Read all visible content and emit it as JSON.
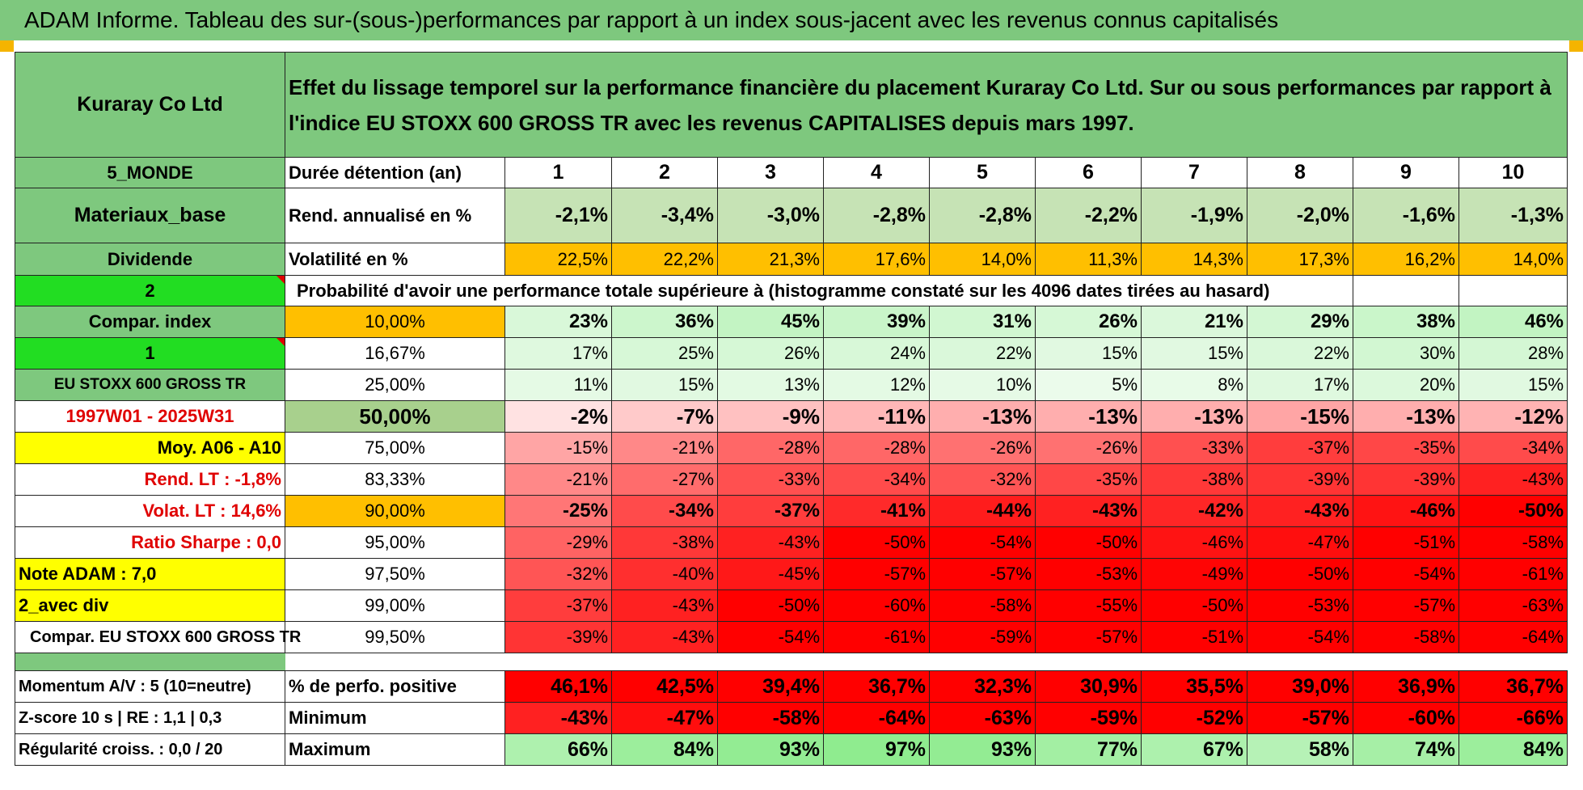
{
  "title": "ADAM Informe. Tableau des sur-(sous-)performances par rapport à un index sous-jacent avec les revenus connus capitalisés",
  "header": {
    "company": "Kuraray Co Ltd",
    "description": "Effet du lissage temporel sur la performance financière du placement Kuraray Co Ltd. Sur ou sous performances par rapport à l'indice EU STOXX 600 GROSS TR avec les revenus CAPITALISES depuis mars 1997."
  },
  "left_labels": {
    "region": "5_MONDE",
    "sector": "Materiaux_base",
    "dividend": "Dividende",
    "sel1": "2",
    "compar_index": "Compar. index",
    "sel2": "1",
    "index_name": "EU STOXX 600 GROSS TR",
    "period": "1997W01 - 2025W31",
    "moy": "Moy. A06 - A10",
    "rend_lt": "Rend. LT :   -1,8%",
    "volat_lt": "Volat. LT :   14,6%",
    "sharpe": "Ratio Sharpe :    0,0",
    "note": "Note ADAM : 7,0",
    "avec_div": "2_avec div",
    "compar_eu": "Compar. EU STOXX 600 GROSS TR",
    "momentum": "Momentum A/V : 5 (10=neutre)",
    "zscore": "Z-score 10 s | RE : 1,1 | 0,3",
    "regularite": "Régularité croiss. : 0,0 / 20"
  },
  "row_labels": {
    "duree": "Durée détention (an)",
    "rend": "Rend. annualisé en %",
    "vol": "Volatilité en %",
    "prob": "Probabilité d'avoir une performance totale supérieure à (histogramme constaté sur les 4096 dates tirées au hasard)",
    "pct_pos": "% de perfo. positive",
    "minimum": "Minimum",
    "maximum": "Maximum"
  },
  "years": [
    "1",
    "2",
    "3",
    "4",
    "5",
    "6",
    "7",
    "8",
    "9",
    "10"
  ],
  "rend": [
    "-2,1%",
    "-3,4%",
    "-3,0%",
    "-2,8%",
    "-2,8%",
    "-2,2%",
    "-1,9%",
    "-2,0%",
    "-1,6%",
    "-1,3%"
  ],
  "vol": [
    "22,5%",
    "22,2%",
    "21,3%",
    "17,6%",
    "14,0%",
    "11,3%",
    "14,3%",
    "17,3%",
    "16,2%",
    "14,0%"
  ],
  "quantiles": [
    {
      "p": "10,00%",
      "v": [
        "23%",
        "36%",
        "45%",
        "39%",
        "31%",
        "26%",
        "21%",
        "29%",
        "38%",
        "46%"
      ]
    },
    {
      "p": "16,67%",
      "v": [
        "17%",
        "25%",
        "26%",
        "24%",
        "22%",
        "15%",
        "15%",
        "22%",
        "30%",
        "28%"
      ]
    },
    {
      "p": "25,00%",
      "v": [
        "11%",
        "15%",
        "13%",
        "12%",
        "10%",
        "5%",
        "8%",
        "17%",
        "20%",
        "15%"
      ]
    },
    {
      "p": "50,00%",
      "v": [
        "-2%",
        "-7%",
        "-9%",
        "-11%",
        "-13%",
        "-13%",
        "-13%",
        "-15%",
        "-13%",
        "-12%"
      ]
    },
    {
      "p": "75,00%",
      "v": [
        "-15%",
        "-21%",
        "-28%",
        "-28%",
        "-26%",
        "-26%",
        "-33%",
        "-37%",
        "-35%",
        "-34%"
      ]
    },
    {
      "p": "83,33%",
      "v": [
        "-21%",
        "-27%",
        "-33%",
        "-34%",
        "-32%",
        "-35%",
        "-38%",
        "-39%",
        "-39%",
        "-43%"
      ]
    },
    {
      "p": "90,00%",
      "v": [
        "-25%",
        "-34%",
        "-37%",
        "-41%",
        "-44%",
        "-43%",
        "-42%",
        "-43%",
        "-46%",
        "-50%"
      ]
    },
    {
      "p": "95,00%",
      "v": [
        "-29%",
        "-38%",
        "-43%",
        "-50%",
        "-54%",
        "-50%",
        "-46%",
        "-47%",
        "-51%",
        "-58%"
      ]
    },
    {
      "p": "97,50%",
      "v": [
        "-32%",
        "-40%",
        "-45%",
        "-57%",
        "-57%",
        "-53%",
        "-49%",
        "-50%",
        "-54%",
        "-61%"
      ]
    },
    {
      "p": "99,00%",
      "v": [
        "-37%",
        "-43%",
        "-50%",
        "-60%",
        "-58%",
        "-55%",
        "-50%",
        "-53%",
        "-57%",
        "-63%"
      ]
    },
    {
      "p": "99,50%",
      "v": [
        "-39%",
        "-43%",
        "-54%",
        "-61%",
        "-59%",
        "-57%",
        "-51%",
        "-54%",
        "-58%",
        "-64%"
      ]
    }
  ],
  "pct_pos": [
    "46,1%",
    "42,5%",
    "39,4%",
    "36,7%",
    "32,3%",
    "30,9%",
    "35,5%",
    "39,0%",
    "36,9%",
    "36,7%"
  ],
  "minimum": [
    "-43%",
    "-47%",
    "-58%",
    "-64%",
    "-63%",
    "-59%",
    "-52%",
    "-57%",
    "-60%",
    "-66%"
  ],
  "maximum": [
    "66%",
    "84%",
    "93%",
    "97%",
    "93%",
    "77%",
    "67%",
    "58%",
    "74%",
    "84%"
  ],
  "colors": {
    "header_green": "#7ec87e",
    "light_green": "#c6e3b5",
    "orange": "#ffbf00",
    "bright_green": "#22dd22",
    "yellow": "#ffff00",
    "red_text": "#e00000"
  }
}
